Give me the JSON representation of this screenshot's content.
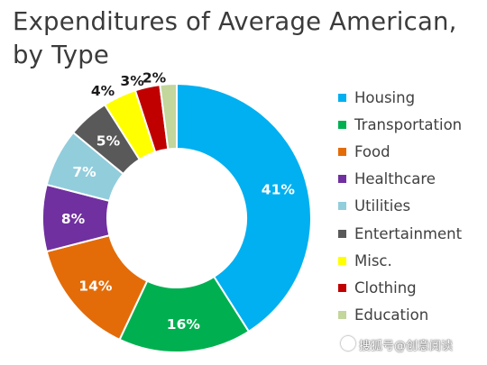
{
  "title": {
    "line1": "Expenditures of Average American,",
    "line2": "by Type"
  },
  "chart_data": {
    "type": "pie",
    "title": "Expenditures of Average American, by Type",
    "donut": true,
    "legend_position": "right",
    "categories": [
      "Housing",
      "Transportation",
      "Food",
      "Healthcare",
      "Utilities",
      "Entertainment",
      "Misc.",
      "Clothing",
      "Education"
    ],
    "values": [
      41,
      16,
      14,
      8,
      7,
      5,
      4,
      3,
      2
    ],
    "labels": [
      "41%",
      "16%",
      "14%",
      "8%",
      "7%",
      "5%",
      "4%",
      "3%",
      "2%"
    ],
    "colors": [
      "#00B0F0",
      "#00B050",
      "#E36C09",
      "#7030A0",
      "#92CDDC",
      "#595959",
      "#FFFF00",
      "#C00000",
      "#C3D69B"
    ]
  },
  "watermark": {
    "text": "搜狐号@创意阅读"
  }
}
